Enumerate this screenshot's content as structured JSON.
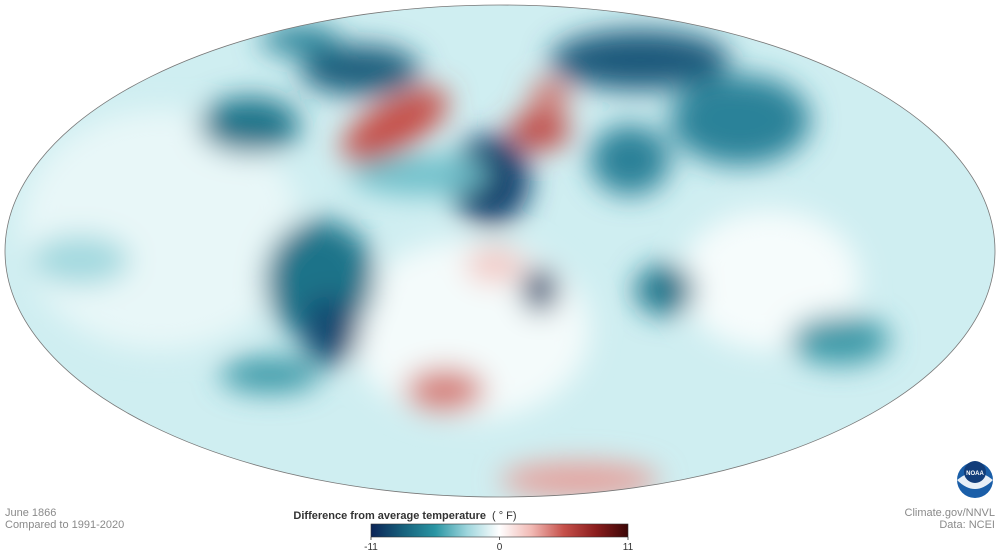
{
  "map": {
    "date": "June 1866",
    "baseline": "Compared to 1991-2020"
  },
  "credits": {
    "source": "Climate.gov/NNVL",
    "data": "Data: NCEI",
    "logo": "NOAA"
  },
  "legend": {
    "title": "Difference from average temperature",
    "unit": "( ° F)",
    "lim": [
      -11,
      11
    ],
    "ticks": [
      -11,
      0,
      11
    ],
    "colors": [
      "#0b2457",
      "#17617c",
      "#2a95a3",
      "#9fd6dd",
      "#ffffff",
      "#f1b9b4",
      "#c6504a",
      "#8b1d1d",
      "#3b0606"
    ]
  }
}
